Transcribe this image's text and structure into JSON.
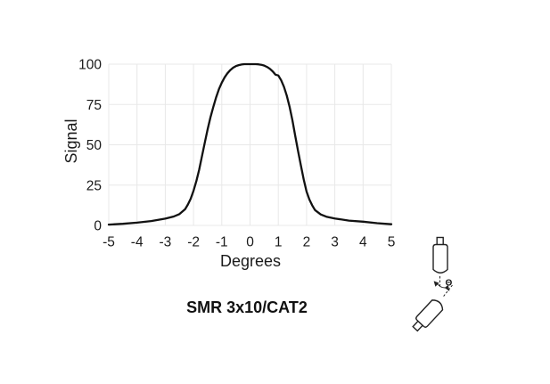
{
  "page": {
    "background": "#ffffff"
  },
  "chart_data": {
    "type": "line",
    "title": "SMR 3x10/CAT2",
    "xlabel": "Degrees",
    "ylabel": "Signal",
    "xlim": [
      -5,
      5
    ],
    "ylim": [
      0,
      100
    ],
    "x_ticks": [
      -5,
      -4,
      -3,
      -2,
      -1,
      0,
      1,
      2,
      3,
      4,
      5
    ],
    "y_ticks": [
      0,
      25,
      50,
      75,
      100
    ],
    "grid": true,
    "legend": false,
    "line_color": "#111111",
    "grid_color": "#e8e8e8",
    "text_color": "#1a1a1a",
    "series": [
      {
        "name": "Signal",
        "x": [
          -5,
          -4.5,
          -4,
          -3.5,
          -3,
          -2.7,
          -2.5,
          -2.3,
          -2.2,
          -2.1,
          -2,
          -1.9,
          -1.8,
          -1.7,
          -1.6,
          -1.5,
          -1.4,
          -1.3,
          -1.2,
          -1.1,
          -1,
          -0.9,
          -0.8,
          -0.7,
          -0.6,
          -0.5,
          -0.4,
          -0.3,
          -0.2,
          -0.1,
          0,
          0.1,
          0.2,
          0.3,
          0.4,
          0.5,
          0.6,
          0.7,
          0.8,
          0.9,
          1,
          1.1,
          1.2,
          1.3,
          1.4,
          1.5,
          1.6,
          1.7,
          1.8,
          1.9,
          2,
          2.1,
          2.2,
          2.3,
          2.5,
          2.7,
          3,
          3.5,
          4,
          4.5,
          5
        ],
        "y": [
          0.5,
          1.0,
          1.7,
          2.7,
          4.2,
          5.5,
          7.0,
          10.0,
          13.0,
          16.5,
          21.5,
          27.5,
          34.5,
          43.0,
          51.5,
          59.5,
          67.0,
          73.5,
          79.5,
          84.5,
          88.5,
          91.8,
          94.3,
          96.3,
          97.8,
          98.8,
          99.4,
          99.8,
          100,
          100,
          100,
          100,
          100,
          99.9,
          99.6,
          99.1,
          98.3,
          97.1,
          95.5,
          93.5,
          93.0,
          90.0,
          86.0,
          80.5,
          73.5,
          65.0,
          55.5,
          46.0,
          37.0,
          28.5,
          21.0,
          16.0,
          12.5,
          9.5,
          6.8,
          5.4,
          4.3,
          3.0,
          2.3,
          1.4,
          0.7
        ]
      }
    ]
  },
  "diagram": {
    "theta_label": "Θ"
  }
}
